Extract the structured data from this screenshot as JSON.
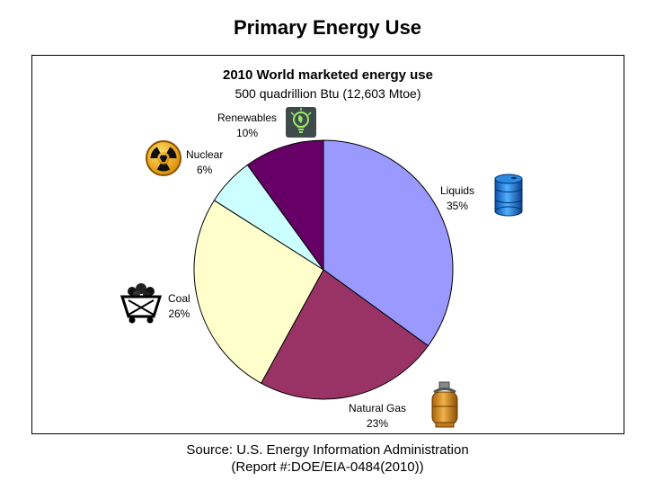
{
  "title": "Primary Energy Use",
  "chart_data": {
    "type": "pie",
    "title": "2010 World marketed energy use",
    "subtitle": "500 quadrillion Btu (12,603 Mtoe)",
    "slices": [
      {
        "name": "Liquids",
        "value": 35,
        "label": "35%",
        "color": "#9999FF",
        "icon": "oil-barrel-icon"
      },
      {
        "name": "Natural Gas",
        "value": 23,
        "label": "23%",
        "color": "#993366",
        "icon": "gas-cylinder-icon"
      },
      {
        "name": "Coal",
        "value": 26,
        "label": "26%",
        "color": "#FFFFCC",
        "icon": "coal-cart-icon"
      },
      {
        "name": "Nuclear",
        "value": 6,
        "label": "6%",
        "color": "#CCFFFF",
        "icon": "radiation-icon"
      },
      {
        "name": "Renewables",
        "value": 10,
        "label": "10%",
        "color": "#660066",
        "icon": "lightbulb-leaf-icon"
      }
    ]
  },
  "source": {
    "line1": "Source: U.S. Energy Information Administration",
    "line2": "(Report #:DOE/EIA-0484(2010))"
  }
}
